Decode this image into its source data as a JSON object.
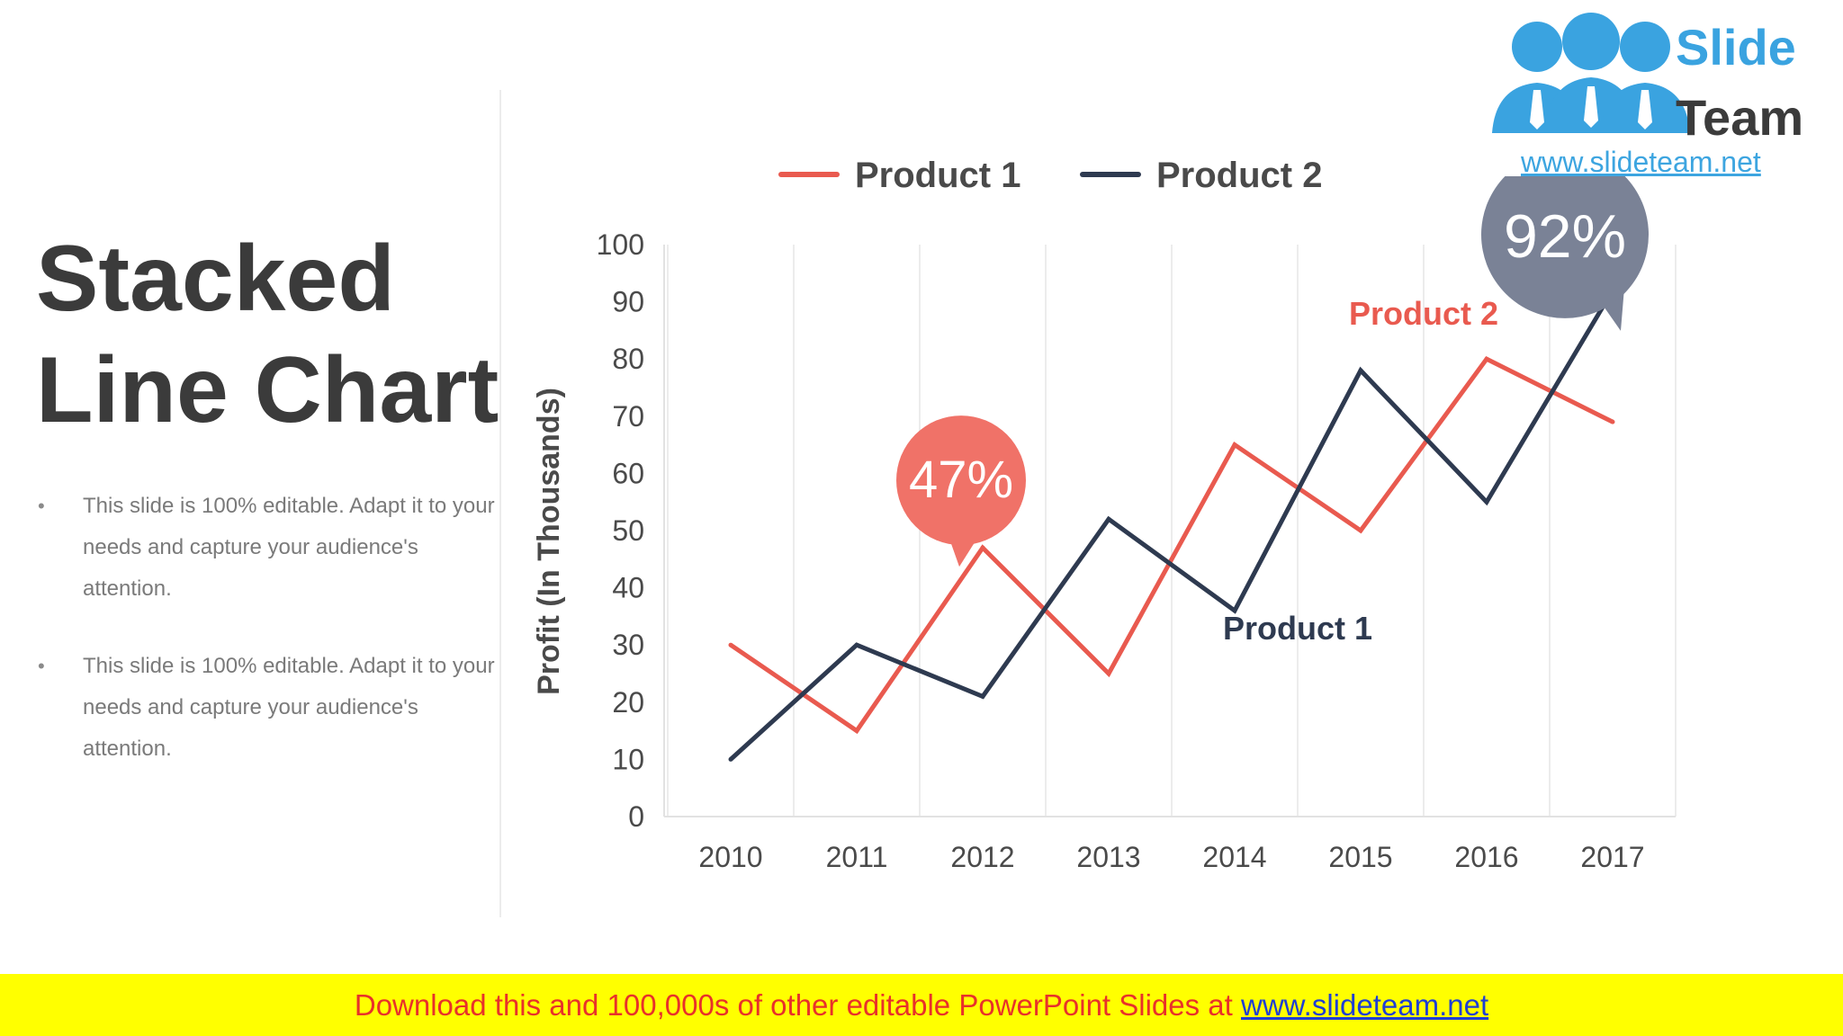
{
  "slide": {
    "title_line1": "Stacked",
    "title_line2": "Line Chart",
    "bullets": [
      "This slide is 100% editable. Adapt it to your needs and capture your audience's attention.",
      "This slide is 100% editable. Adapt it to your needs and capture your audience's attention."
    ]
  },
  "logo": {
    "word1": "Slide",
    "word2": "Team",
    "url": "www.slideteam.net"
  },
  "banner": {
    "text": "Download this and 100,000s of other editable PowerPoint Slides at ",
    "link": "www.slideteam.net"
  },
  "colors": {
    "product1": "#e95a4f",
    "product2": "#2e3a50",
    "callout_red": "#f07268",
    "callout_gray": "#7a8296"
  },
  "chart_data": {
    "type": "line",
    "ylabel": "Profit (In Thousands)",
    "xlabel": "",
    "ylim": [
      0,
      100
    ],
    "yticks": [
      0,
      10,
      20,
      30,
      40,
      50,
      60,
      70,
      80,
      90,
      100
    ],
    "categories": [
      "2010",
      "2011",
      "2012",
      "2013",
      "2014",
      "2015",
      "2016",
      "2017"
    ],
    "series": [
      {
        "name": "Product 1",
        "color": "#e95a4f",
        "values": [
          30,
          15,
          47,
          25,
          65,
          50,
          80,
          69
        ]
      },
      {
        "name": "Product 2",
        "color": "#2e3a50",
        "values": [
          10,
          30,
          21,
          52,
          36,
          78,
          55,
          92
        ]
      }
    ],
    "legend": "top-center",
    "grid": "vertical",
    "annotations": [
      {
        "text": "47%",
        "series": 0,
        "index": 2,
        "color": "#f07268"
      },
      {
        "text": "92%",
        "series": 1,
        "index": 7,
        "color": "#7a8296"
      }
    ],
    "inline_labels": [
      {
        "text": "Product 2",
        "color": "#e95a4f",
        "x": "2015.5",
        "y": 86
      },
      {
        "text": "Product 1",
        "color": "#2e3a50",
        "x": "2014.5",
        "y": 31
      }
    ]
  }
}
